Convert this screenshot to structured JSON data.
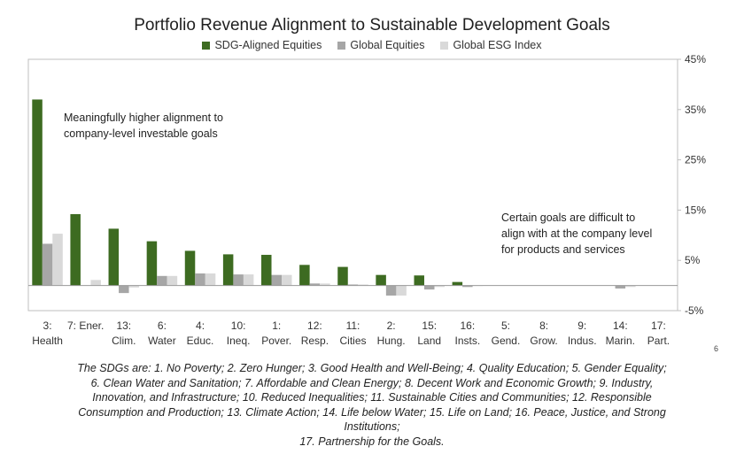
{
  "chart_data": {
    "type": "bar",
    "title": "Portfolio Revenue Alignment to Sustainable Development Goals",
    "categories": [
      [
        "3:",
        "Health"
      ],
      [
        "7: Ener.",
        ""
      ],
      [
        "13:",
        "Clim."
      ],
      [
        "6:",
        "Water"
      ],
      [
        "4:",
        "Educ."
      ],
      [
        "10:",
        "Ineq."
      ],
      [
        "1:",
        "Pover."
      ],
      [
        "12:",
        "Resp."
      ],
      [
        "11:",
        "Cities"
      ],
      [
        "2:",
        "Hung."
      ],
      [
        "15:",
        "Land"
      ],
      [
        "16:",
        "Insts."
      ],
      [
        "5:",
        "Gend."
      ],
      [
        "8:",
        "Grow."
      ],
      [
        "9:",
        "Indus."
      ],
      [
        "14:",
        "Marin."
      ],
      [
        "17:",
        "Part."
      ]
    ],
    "series": [
      {
        "name": "SDG-Aligned Equities",
        "color": "#3d6b21",
        "values": [
          37,
          14.2,
          11.3,
          8.8,
          6.9,
          6.2,
          6.1,
          4.1,
          3.7,
          2.1,
          2.0,
          0.7,
          0,
          0,
          0,
          0,
          0
        ]
      },
      {
        "name": "Global Equities",
        "color": "#a6a6a6",
        "values": [
          8.3,
          0,
          -1.5,
          1.9,
          2.4,
          2.2,
          2.1,
          0.4,
          0.2,
          -2.0,
          -0.8,
          -0.3,
          0,
          0,
          0,
          -0.6,
          0
        ]
      },
      {
        "name": "Global ESG Index",
        "color": "#d9d9d9",
        "values": [
          10.3,
          1.1,
          -0.4,
          1.9,
          2.4,
          2.2,
          2.1,
          0.4,
          0.2,
          -2.0,
          -0.3,
          -0.1,
          0,
          0,
          0,
          -0.3,
          0
        ]
      }
    ],
    "ylim": [
      -5,
      45
    ],
    "yticks": [
      {
        "value": 45,
        "label": "45%"
      },
      {
        "value": 35,
        "label": "35%"
      },
      {
        "value": 25,
        "label": "25%"
      },
      {
        "value": 15,
        "label": "15%"
      },
      {
        "value": 5,
        "label": "5%"
      },
      {
        "value": -5,
        "label": "-5%"
      }
    ],
    "annotations": [
      {
        "lines": [
          "Meaningfully higher alignment to",
          "company-level investable goals"
        ]
      },
      {
        "lines": [
          "Certain goals are difficult to",
          "align with at the company level",
          "for products and services"
        ]
      }
    ]
  },
  "footnote": [
    "The SDGs are: 1. No Poverty; 2. Zero Hunger; 3. Good Health and Well-Being; 4. Quality Education; 5. Gender Equality;",
    "6. Clean Water and Sanitation; 7. Affordable and Clean Energy; 8. Decent Work and Economic Growth; 9. Industry,",
    "Innovation, and Infrastructure; 10. Reduced Inequalities; 11. Sustainable Cities and Communities; 12. Responsible",
    "Consumption and Production; 13. Climate Action; 14. Life below Water; 15. Life on Land; 16. Peace, Justice, and Strong",
    "Institutions;",
    "17. Partnership for the Goals."
  ],
  "page_number": "6"
}
